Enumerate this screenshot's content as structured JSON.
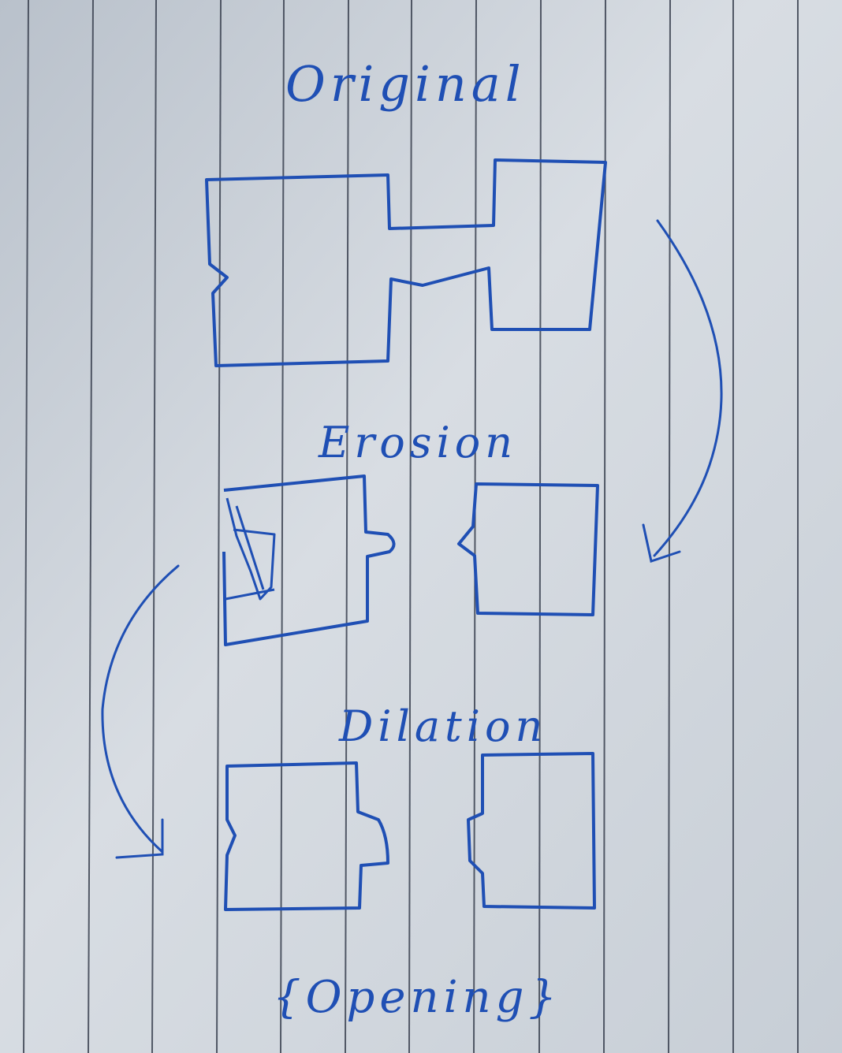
{
  "labels": {
    "original": "Original",
    "erosion": "Erosion",
    "dilation": "Dilation",
    "opening": "{Opening}"
  },
  "colors": {
    "paper": "#cfd5dc",
    "ruled_line": "#3a4150",
    "ink": "#1f4fb4"
  }
}
